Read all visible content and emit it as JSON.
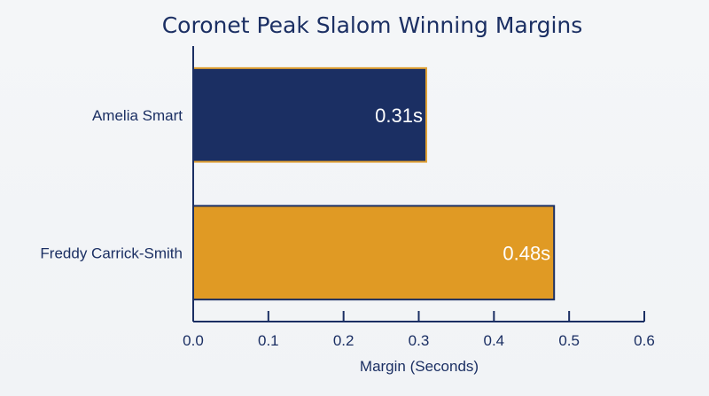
{
  "chart_data": {
    "type": "bar",
    "orientation": "horizontal",
    "title": "Coronet Peak Slalom Winning Margins",
    "xlabel": "Margin (Seconds)",
    "ylabel": "",
    "categories": [
      "Amelia Smart",
      "Freddy Carrick-Smith"
    ],
    "values": [
      0.31,
      0.48
    ],
    "value_labels": [
      "0.31s",
      "0.48s"
    ],
    "xlim": [
      0,
      0.6
    ],
    "xticks": [
      "0.0",
      "0.1",
      "0.2",
      "0.3",
      "0.4",
      "0.5",
      "0.6"
    ],
    "grid": false,
    "bar_colors": [
      "#1b2f63",
      "#e09a24"
    ],
    "bar_edge_color": "#e0a033",
    "text_color": "#1b2f63"
  }
}
